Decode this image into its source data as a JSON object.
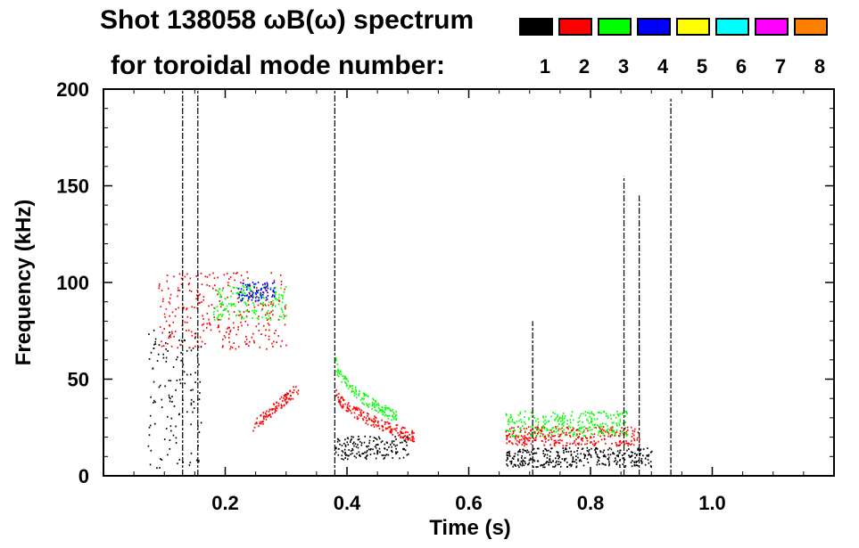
{
  "header": {
    "title_line1": "Shot 138058 ωB(ω) spectrum",
    "title_line2": "for toroidal mode number:"
  },
  "legend": [
    {
      "label": "1",
      "color": "#000000"
    },
    {
      "label": "2",
      "color": "#ff0000"
    },
    {
      "label": "3",
      "color": "#00ff00"
    },
    {
      "label": "4",
      "color": "#0000ff"
    },
    {
      "label": "5",
      "color": "#ffff00"
    },
    {
      "label": "6",
      "color": "#00ffff"
    },
    {
      "label": "7",
      "color": "#ff00ff"
    },
    {
      "label": "8",
      "color": "#ff8000"
    }
  ],
  "chart_data": {
    "type": "heatmap",
    "title": "Shot 138058 ωB(ω) spectrum for toroidal mode number",
    "xlabel": "Time (s)",
    "ylabel": "Frequency (kHz)",
    "xlim": [
      0.0,
      1.2
    ],
    "ylim": [
      0,
      200
    ],
    "xticks": [
      0.2,
      0.4,
      0.6,
      0.8,
      1.0
    ],
    "xtick_labels": [
      "0.2",
      "0.4",
      "0.6",
      "0.8",
      "1.0"
    ],
    "yticks": [
      0,
      50,
      100,
      150,
      200
    ],
    "ytick_labels": [
      "0",
      "50",
      "100",
      "150",
      "200"
    ],
    "features": [
      {
        "mode": 1,
        "t_start": 0.07,
        "t_end": 0.16,
        "f_low": 0,
        "f_high": 75,
        "desc": "broadband low-frequency activity"
      },
      {
        "mode": 2,
        "t_start": 0.09,
        "t_end": 0.3,
        "f_low": 65,
        "f_high": 105,
        "desc": "n=2 mode band"
      },
      {
        "mode": 3,
        "t_start": 0.18,
        "t_end": 0.3,
        "f_low": 80,
        "f_high": 98,
        "desc": "n=3 mode band"
      },
      {
        "mode": 4,
        "t_start": 0.22,
        "t_end": 0.28,
        "f_low": 90,
        "f_high": 100,
        "desc": "n=4 mode band"
      },
      {
        "mode": 2,
        "t_start": 0.245,
        "t_end": 0.32,
        "f_low": 25,
        "f_high": 45,
        "desc": "n=2 chirp"
      },
      {
        "mode": 1,
        "t_start": 0.38,
        "t_end": 0.5,
        "f_low": 8,
        "f_high": 20,
        "desc": "n=1 band"
      },
      {
        "mode": 2,
        "t_start": 0.38,
        "t_end": 0.51,
        "f_low": 20,
        "f_high": 45,
        "desc": "n=2 decaying branch"
      },
      {
        "mode": 3,
        "t_start": 0.38,
        "t_end": 0.48,
        "f_low": 30,
        "f_high": 60,
        "desc": "n=3 decaying branch"
      },
      {
        "mode": 1,
        "t_start": 0.66,
        "t_end": 0.9,
        "f_low": 4,
        "f_high": 14,
        "desc": "n=1 band"
      },
      {
        "mode": 2,
        "t_start": 0.66,
        "t_end": 0.88,
        "f_low": 15,
        "f_high": 25,
        "desc": "n=2 band"
      },
      {
        "mode": 3,
        "t_start": 0.66,
        "t_end": 0.86,
        "f_low": 20,
        "f_high": 33,
        "desc": "n=3 band"
      }
    ],
    "spikes": [
      {
        "t": 0.13,
        "f_high": 200
      },
      {
        "t": 0.155,
        "f_high": 200
      },
      {
        "t": 0.38,
        "f_high": 200
      },
      {
        "t": 0.705,
        "f_high": 80
      },
      {
        "t": 0.855,
        "f_high": 155
      },
      {
        "t": 0.88,
        "f_high": 145
      },
      {
        "t": 0.932,
        "f_high": 195
      }
    ]
  }
}
